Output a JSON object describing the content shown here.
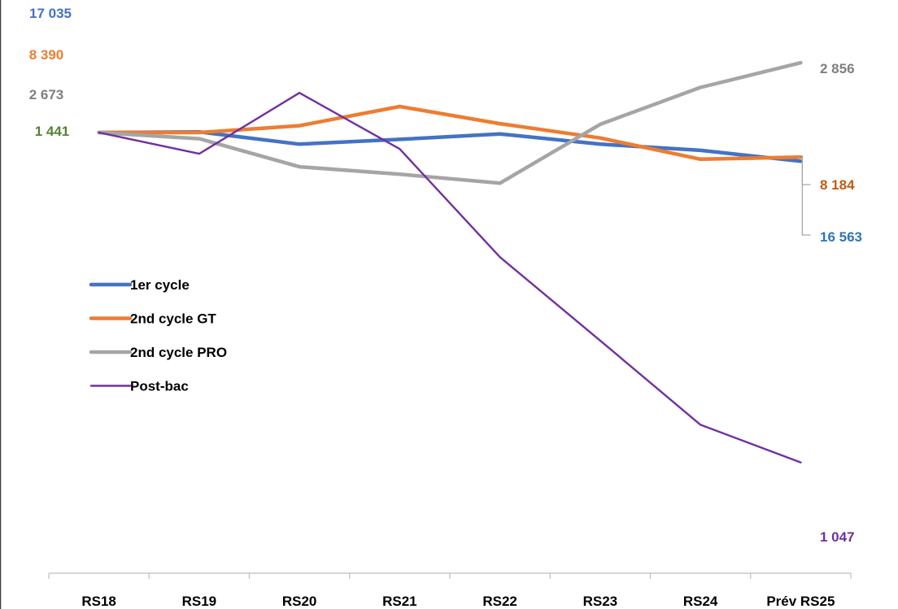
{
  "colors": {
    "background": "#ffffff",
    "frame": "#3a3a3a",
    "axis": "#bfbfbf",
    "tick_text": "#000000",
    "leader": "#a6a6a6"
  },
  "chart_data": {
    "type": "line",
    "title": "",
    "xlabel": "",
    "ylabel": "",
    "categories": [
      "RS18",
      "RS19",
      "RS20",
      "RS21",
      "RS22",
      "RS23",
      "RS24",
      "Prév RS25"
    ],
    "ylim": [
      70,
      106
    ],
    "grid": false,
    "legend_position": "left",
    "series": [
      {
        "name": "1er cycle",
        "color": "#4472c4",
        "start_label": "17 035",
        "end_label": "16 563",
        "label_color": "#4472c4",
        "end_label_color": "#2e75b6",
        "values": [
          100,
          100.05,
          99.15,
          99.5,
          99.9,
          99.15,
          98.7,
          97.9
        ]
      },
      {
        "name": "2nd cycle GT",
        "color": "#ed7d31",
        "start_label": "8 390",
        "end_label": "8 184",
        "label_color": "#ed7d31",
        "end_label_color": "#c55a11",
        "values": [
          100,
          100,
          100.5,
          101.9,
          100.65,
          99.6,
          98.05,
          98.2
        ]
      },
      {
        "name": "2nd cycle PRO",
        "color": "#a5a5a5",
        "start_label": "2 673",
        "end_label": "2 856",
        "label_color": "#7f7f7f",
        "end_label_color": "#7f7f7f",
        "values": [
          100,
          99.55,
          97.5,
          96.95,
          96.3,
          100.6,
          103.3,
          105.1
        ]
      },
      {
        "name": "Post-bac",
        "color": "#7030a0",
        "start_label": "1 441",
        "end_label": "1 047",
        "label_color": "#548235",
        "end_label_color": "#7030a0",
        "values": [
          100,
          98.45,
          102.9,
          98.8,
          90.9,
          84.8,
          78.65,
          75.9
        ]
      }
    ]
  }
}
